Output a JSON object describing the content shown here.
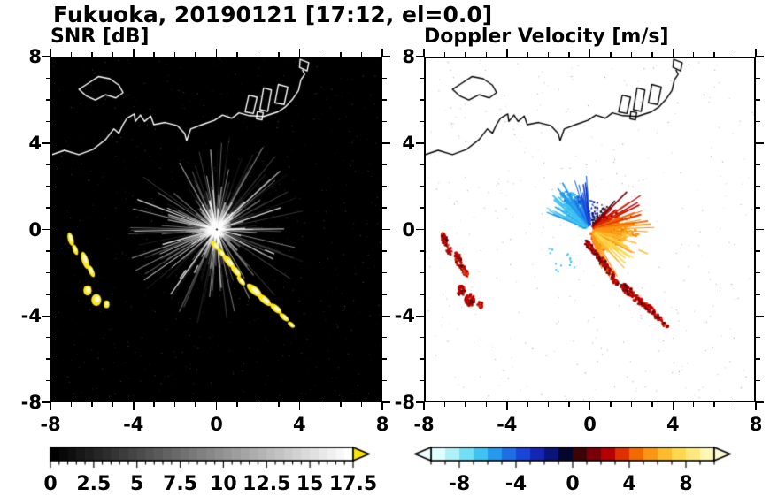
{
  "title": "Fukuoka, 20190121 [17:12, el=0.0]",
  "panels": [
    {
      "label": "SNR [dB]"
    },
    {
      "label": "Doppler Velocity [m/s]"
    }
  ],
  "axes": {
    "range": [
      -8,
      8
    ],
    "major_ticks": [
      -8,
      -4,
      0,
      4,
      8
    ],
    "tick_labels": [
      "-8",
      "-4",
      "0",
      "4",
      "8"
    ],
    "minor_step": 1
  },
  "coastline": {
    "main": [
      [
        -8,
        3.5
      ],
      [
        -7.4,
        3.7
      ],
      [
        -6.7,
        3.5
      ],
      [
        -6,
        3.75
      ],
      [
        -5.4,
        4.2
      ],
      [
        -5,
        4.7
      ],
      [
        -4.75,
        4.5
      ],
      [
        -4.55,
        4.9
      ],
      [
        -4.35,
        5.2
      ],
      [
        -4,
        5.4
      ],
      [
        -3.95,
        5.05
      ],
      [
        -3.7,
        5.35
      ],
      [
        -3.5,
        5.05
      ],
      [
        -3.2,
        5.3
      ],
      [
        -3.05,
        4.9
      ],
      [
        -2.5,
        5
      ],
      [
        -1.9,
        4.85
      ],
      [
        -1.55,
        4.5
      ],
      [
        -1.45,
        4.15
      ],
      [
        -1.25,
        4.7
      ],
      [
        -0.7,
        4.9
      ],
      [
        -0.1,
        5.1
      ],
      [
        0.3,
        5.35
      ],
      [
        0.75,
        5.2
      ],
      [
        1.1,
        5.45
      ],
      [
        1.6,
        5.32
      ],
      [
        2.3,
        5.28
      ],
      [
        3,
        5.5
      ],
      [
        3.35,
        5.72
      ],
      [
        3.72,
        6.1
      ],
      [
        4,
        6.5
      ],
      [
        4.12,
        7
      ],
      [
        4.3,
        7.25
      ],
      [
        4.2,
        7.45
      ]
    ],
    "island": [
      [
        -6.7,
        6.55
      ],
      [
        -6.3,
        6.8
      ],
      [
        -5.75,
        7.15
      ],
      [
        -5.2,
        7.05
      ],
      [
        -4.75,
        6.75
      ],
      [
        -4.55,
        6.4
      ],
      [
        -4.9,
        6.15
      ],
      [
        -5.4,
        6.3
      ],
      [
        -5.9,
        6.05
      ],
      [
        -6.35,
        6.25
      ]
    ],
    "islet": [
      [
        4.08,
        7.95
      ],
      [
        4.5,
        7.8
      ],
      [
        4.42,
        7.42
      ],
      [
        4.05,
        7.58
      ]
    ],
    "harbor": [
      [
        [
          1.4,
          5.5
        ],
        [
          1.58,
          6.28
        ],
        [
          1.98,
          6.18
        ],
        [
          1.8,
          5.42
        ]
      ],
      [
        [
          2.12,
          5.6
        ],
        [
          2.3,
          6.62
        ],
        [
          2.68,
          6.52
        ],
        [
          2.5,
          5.52
        ]
      ],
      [
        [
          2.85,
          5.92
        ],
        [
          3.02,
          6.78
        ],
        [
          3.48,
          6.66
        ],
        [
          3.3,
          5.84
        ]
      ],
      [
        [
          1.95,
          5.18
        ],
        [
          2.0,
          5.52
        ],
        [
          2.28,
          5.46
        ],
        [
          2.22,
          5.12
        ]
      ]
    ]
  },
  "echo_blobs": [
    [
      -7.1,
      -0.45,
      0.14,
      0.32,
      15
    ],
    [
      -6.88,
      -0.95,
      0.12,
      0.26,
      20
    ],
    [
      -6.4,
      -1.45,
      0.16,
      0.42,
      18
    ],
    [
      -6.1,
      -1.95,
      0.13,
      0.3,
      25
    ],
    [
      -6.28,
      -2.85,
      0.2,
      0.24,
      0
    ],
    [
      -5.85,
      -3.3,
      0.24,
      0.28,
      0
    ],
    [
      -5.35,
      -3.5,
      0.14,
      0.18,
      0
    ],
    [
      -0.05,
      -0.75,
      0.3,
      0.13,
      -48
    ],
    [
      0.25,
      -1.1,
      0.26,
      0.11,
      -48
    ],
    [
      0.6,
      -1.5,
      0.4,
      0.15,
      -50
    ],
    [
      0.95,
      -1.95,
      0.34,
      0.14,
      -50
    ],
    [
      1.2,
      -2.4,
      0.28,
      0.12,
      -50
    ],
    [
      1.85,
      -2.85,
      0.46,
      0.18,
      -40
    ],
    [
      2.35,
      -3.3,
      0.4,
      0.16,
      -40
    ],
    [
      2.9,
      -3.7,
      0.34,
      0.15,
      -40
    ],
    [
      3.3,
      -4.1,
      0.28,
      0.12,
      -40
    ],
    [
      3.65,
      -4.45,
      0.2,
      0.1,
      -40
    ]
  ],
  "chart_data": [
    {
      "type": "heatmap",
      "title": "SNR [dB]",
      "xlabel": "",
      "ylabel": "",
      "xlim": [
        -8,
        8
      ],
      "ylim": [
        -8,
        8
      ],
      "units": "dB",
      "background": "#000000",
      "coast_color": "#ffffff",
      "radar_center": [
        0,
        0
      ],
      "speckle": {
        "count": 900,
        "seed": 11
      },
      "rays": {
        "count": 260,
        "seed": 7,
        "min_len": 0.35,
        "max_len": 4.5
      },
      "bright_rays": {
        "count": 70,
        "max_len": 1.3
      },
      "long_rays": [
        {
          "deg": 18,
          "r0": 0.15,
          "len": 3.3
        },
        {
          "deg": 160,
          "r0": 0.15,
          "len": 4.1
        },
        {
          "deg": -22,
          "r0": 2.55,
          "len": 3.05
        },
        {
          "deg": -128,
          "r0": 2.4,
          "len": 2.9
        },
        {
          "deg": -118,
          "r0": 1.9,
          "len": 2.3
        }
      ],
      "echo_color": "#ffe71e",
      "colorbar": {
        "min": 0,
        "max": 17.5,
        "step": 0.5,
        "tick_step": 2.5,
        "label_values": [
          0,
          2.5,
          5,
          7.5,
          10,
          12.5,
          15,
          17.5
        ],
        "labels": [
          "0",
          "2.5",
          "5",
          "7.5",
          "10",
          "12.5",
          "15",
          "17.5"
        ],
        "start_color": "#000000",
        "end_color": "#ffffff",
        "over_arrow_color": "#ffe400"
      }
    },
    {
      "type": "heatmap",
      "title": "Doppler Velocity [m/s]",
      "xlabel": "",
      "ylabel": "",
      "xlim": [
        -8,
        8
      ],
      "ylim": [
        -8,
        8
      ],
      "units": "m/s",
      "background": "#ffffff",
      "coast_color": "#000000",
      "radar_center": [
        0,
        0
      ],
      "speckle": {
        "count": 380,
        "seed": 13
      },
      "wind": {
        "downwind_deg": -30,
        "max_speed": 6.5
      },
      "fan": {
        "seed": 5,
        "blue_sector": [
          92,
          162
        ],
        "warm_sector": [
          -75,
          48
        ],
        "gap_sector": [
          46,
          94
        ],
        "fill_blue": 650,
        "fill_warm": 900,
        "gap_specks": 110,
        "streak_count": 95
      },
      "dashes": [
        {
          "deg": -22,
          "r0": 2.55,
          "r1": 3.05
        }
      ],
      "cyan_specks": [
        {
          "x": -1.15,
          "y": -1.25
        },
        {
          "x": -1.9,
          "y": -0.95
        },
        {
          "x": -0.85,
          "y": -1.62
        },
        {
          "x": -1.55,
          "y": -1.75
        }
      ],
      "cyan_color": "#38c8f2",
      "echo_colors": [
        "#c80000",
        "#8c0000",
        "#3a0006",
        "#e84800"
      ],
      "colorbar": {
        "min": -10,
        "max": 10,
        "step": 1,
        "major_tick": 4,
        "label_values": [
          -8,
          -4,
          0,
          4,
          8
        ],
        "labels": [
          "-8",
          "-4",
          "0",
          "4",
          "8"
        ],
        "stops": [
          "#e0fdff",
          "#aef2f8",
          "#72e0f4",
          "#3fc3f2",
          "#2499ee",
          "#1e6ee6",
          "#1b44d8",
          "#1526b4",
          "#0b1478",
          "#04062e",
          "#3d0408",
          "#790008",
          "#b40000",
          "#e03000",
          "#f26a00",
          "#fa9612",
          "#fdbb2e",
          "#ffd84e",
          "#ffe97e",
          "#fff7b5"
        ],
        "under_arrow_color": "#eefdff",
        "over_arrow_color": "#fffbd4"
      }
    }
  ]
}
